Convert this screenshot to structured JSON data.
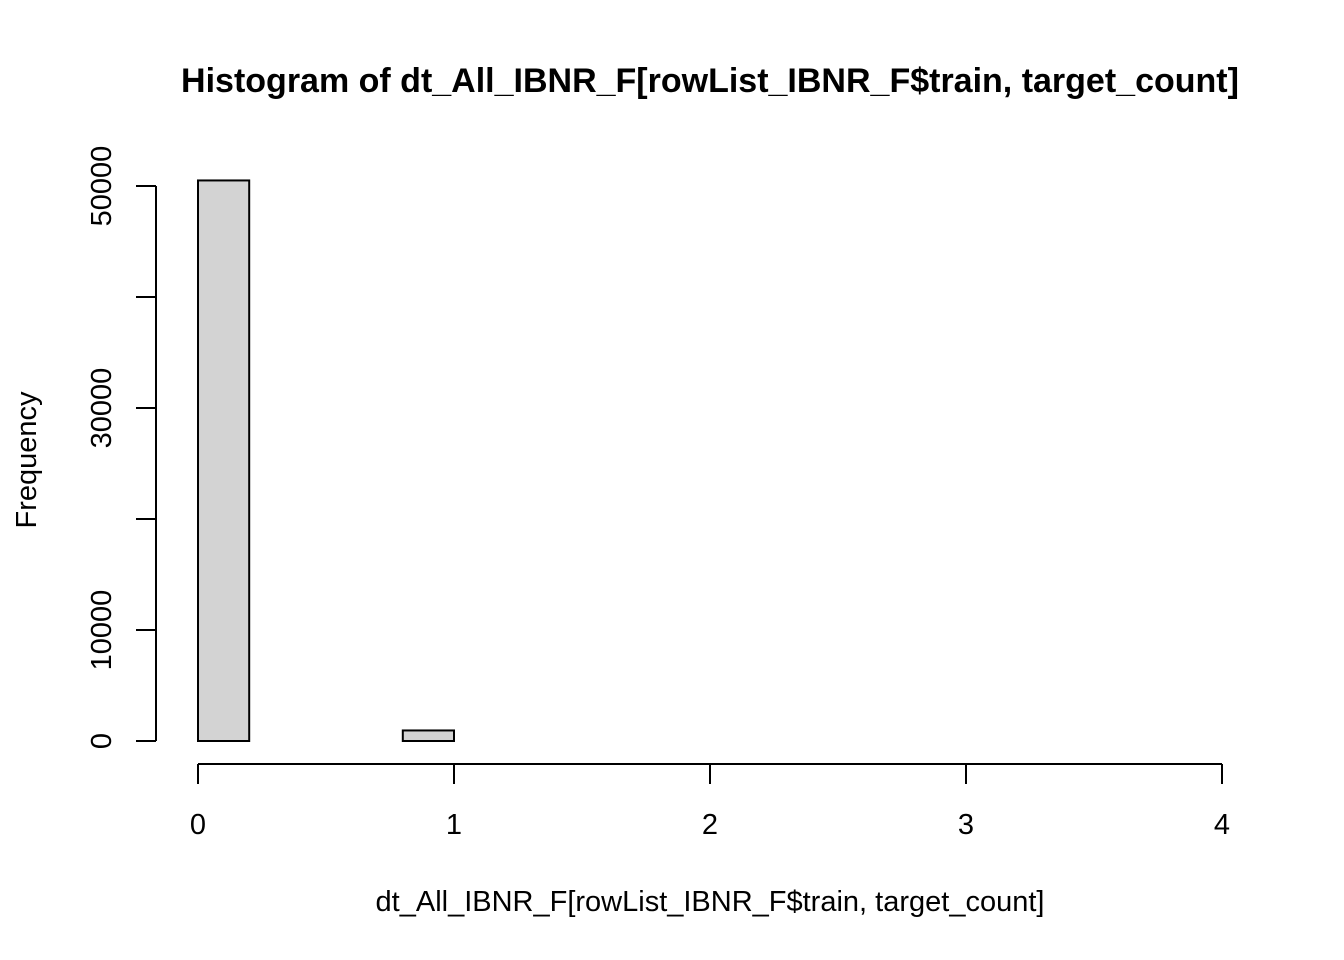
{
  "chart_data": {
    "type": "bar",
    "title": "Histogram of dt_All_IBNR_F[rowList_IBNR_F$train, target_count]",
    "xlabel": "dt_All_IBNR_F[rowList_IBNR_F$train, target_count]",
    "ylabel": "Frequency",
    "bins": [
      {
        "start": 0.0,
        "end": 0.2,
        "count": 50500
      },
      {
        "start": 0.2,
        "end": 0.4,
        "count": 0
      },
      {
        "start": 0.4,
        "end": 0.6,
        "count": 0
      },
      {
        "start": 0.6,
        "end": 0.8,
        "count": 0
      },
      {
        "start": 0.8,
        "end": 1.0,
        "count": 950
      },
      {
        "start": 1.0,
        "end": 1.2,
        "count": 0
      },
      {
        "start": 1.2,
        "end": 1.4,
        "count": 0
      },
      {
        "start": 1.4,
        "end": 1.6,
        "count": 0
      },
      {
        "start": 1.6,
        "end": 1.8,
        "count": 0
      },
      {
        "start": 1.8,
        "end": 2.0,
        "count": 0
      },
      {
        "start": 2.0,
        "end": 2.2,
        "count": 0
      },
      {
        "start": 2.2,
        "end": 2.4,
        "count": 0
      },
      {
        "start": 2.4,
        "end": 2.6,
        "count": 0
      },
      {
        "start": 2.6,
        "end": 2.8,
        "count": 0
      },
      {
        "start": 2.8,
        "end": 3.0,
        "count": 0
      },
      {
        "start": 3.0,
        "end": 3.2,
        "count": 0
      },
      {
        "start": 3.2,
        "end": 3.4,
        "count": 0
      },
      {
        "start": 3.4,
        "end": 3.6,
        "count": 0
      },
      {
        "start": 3.6,
        "end": 3.8,
        "count": 0
      },
      {
        "start": 3.8,
        "end": 4.0,
        "count": 0
      }
    ],
    "xlim": [
      0,
      4
    ],
    "ylim": [
      0,
      50500
    ],
    "x_ticks": [
      0,
      1,
      2,
      3,
      4
    ],
    "x_tick_labels": [
      "0",
      "1",
      "2",
      "3",
      "4"
    ],
    "y_ticks": [
      0,
      10000,
      20000,
      30000,
      40000,
      50000
    ],
    "y_tick_labels": [
      "0",
      "10000",
      "",
      "30000",
      "",
      "50000"
    ],
    "bar_color": "#d3d3d3",
    "grid": false,
    "legend": "none"
  }
}
